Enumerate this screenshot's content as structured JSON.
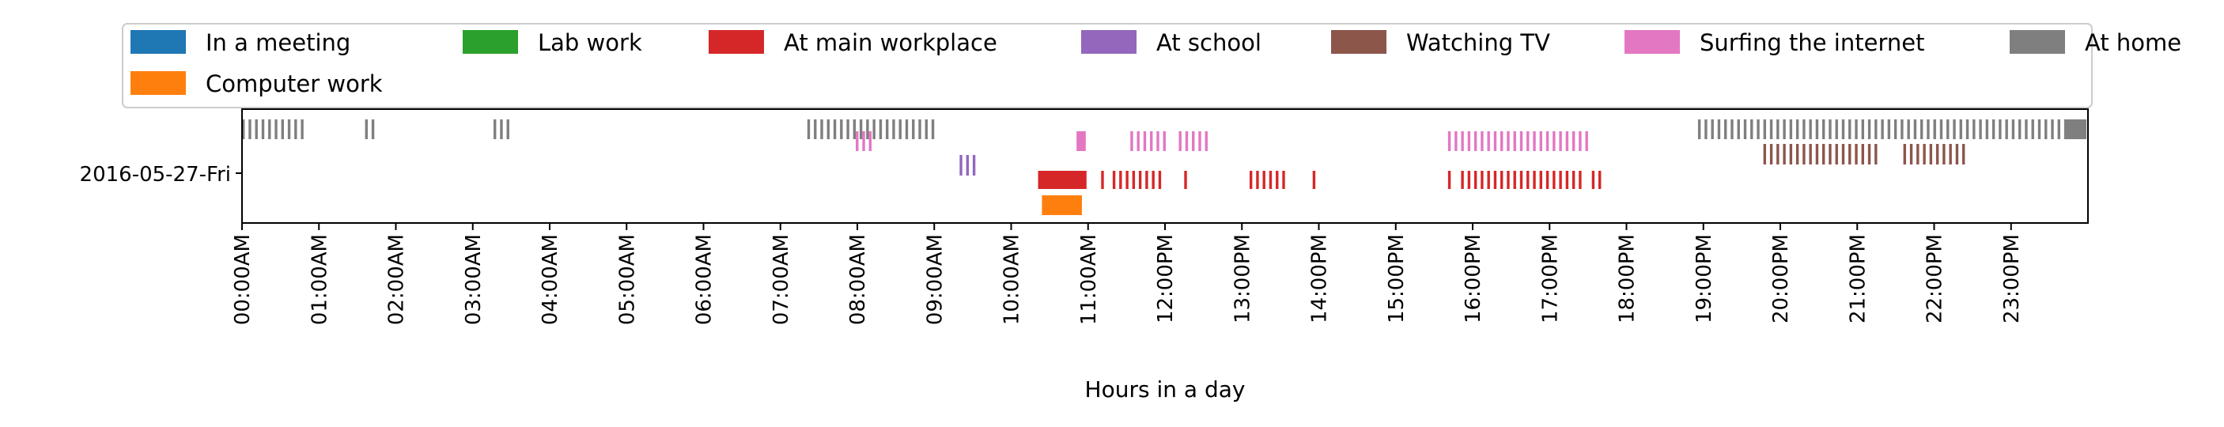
{
  "chart_data": {
    "type": "timeline",
    "xlabel": "Hours in a day",
    "xlim": [
      0,
      24
    ],
    "y_category": "2016-05-27-Fri",
    "x_tick_labels": [
      "00:00AM",
      "01:00AM",
      "02:00AM",
      "03:00AM",
      "04:00AM",
      "05:00AM",
      "06:00AM",
      "07:00AM",
      "08:00AM",
      "09:00AM",
      "10:00AM",
      "11:00AM",
      "12:00PM",
      "13:00PM",
      "14:00PM",
      "15:00PM",
      "16:00PM",
      "17:00PM",
      "18:00PM",
      "19:00PM",
      "20:00PM",
      "21:00PM",
      "22:00PM",
      "23:00PM"
    ],
    "legend_placement": "top",
    "legend_columns": 7,
    "series": [
      {
        "name": "In a meeting",
        "color": "#1f77b4",
        "intervals": []
      },
      {
        "name": "Computer work",
        "color": "#ff7f0e",
        "intervals": [
          [
            10.4,
            10.92
          ]
        ]
      },
      {
        "name": "Lab work",
        "color": "#2ca02c",
        "intervals": []
      },
      {
        "name": "At main workplace",
        "color": "#d62728",
        "intervals": [
          [
            10.35,
            10.98
          ],
          [
            11.17,
            11.22
          ],
          [
            11.32,
            11.93
          ],
          [
            12.25,
            12.3
          ],
          [
            13.1,
            13.58
          ],
          [
            13.92,
            13.97
          ],
          [
            15.68,
            15.73
          ],
          [
            15.85,
            17.45
          ],
          [
            17.55,
            17.7
          ]
        ]
      },
      {
        "name": "At school",
        "color": "#9467bd",
        "intervals": [
          [
            9.33,
            9.57
          ]
        ]
      },
      {
        "name": "Watching TV",
        "color": "#8c564b",
        "intervals": [
          [
            19.78,
            21.3
          ],
          [
            21.6,
            22.42
          ]
        ]
      },
      {
        "name": "Surfing the internet",
        "color": "#e377c2",
        "intervals": [
          [
            7.98,
            8.22
          ],
          [
            10.85,
            10.97
          ],
          [
            11.55,
            12.05
          ],
          [
            12.18,
            12.57
          ],
          [
            15.68,
            17.48
          ]
        ]
      },
      {
        "name": "At home",
        "color": "#7f7f7f",
        "intervals": [
          [
            0.0,
            0.82
          ],
          [
            1.6,
            1.72
          ],
          [
            3.27,
            3.45
          ],
          [
            7.35,
            8.98
          ],
          [
            18.93,
            23.98
          ]
        ]
      }
    ]
  }
}
